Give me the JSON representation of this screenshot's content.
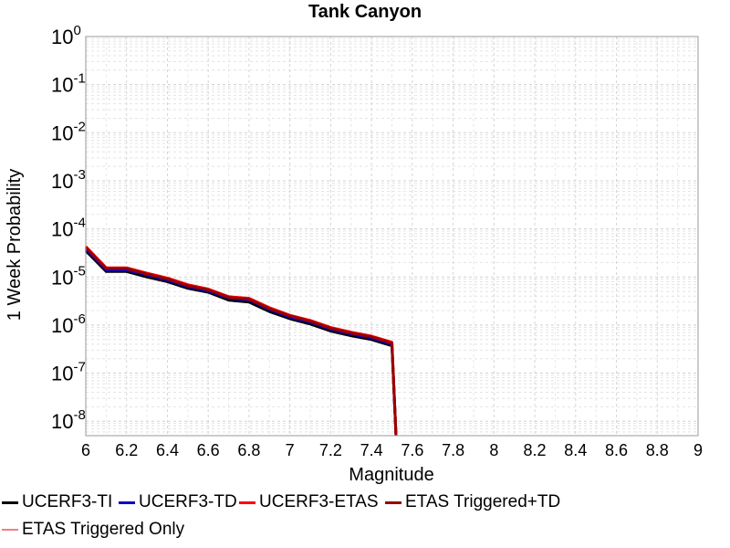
{
  "chart_data": {
    "type": "line",
    "title": "Tank Canyon",
    "xlabel": "Magnitude",
    "ylabel": "1 Week Probability",
    "xlim": [
      6,
      9
    ],
    "ylim_exp": [
      -8.3,
      0
    ],
    "yscale": "log",
    "grid": true,
    "x_ticks": [
      "6",
      "6.2",
      "6.4",
      "6.6",
      "6.8",
      "7",
      "7.2",
      "7.4",
      "7.6",
      "7.8",
      "8",
      "8.2",
      "8.4",
      "8.6",
      "8.8",
      "9"
    ],
    "y_ticks": [
      {
        "base": "10",
        "exp": "0"
      },
      {
        "base": "10",
        "exp": "-1"
      },
      {
        "base": "10",
        "exp": "-2"
      },
      {
        "base": "10",
        "exp": "-3"
      },
      {
        "base": "10",
        "exp": "-4"
      },
      {
        "base": "10",
        "exp": "-5"
      },
      {
        "base": "10",
        "exp": "-6"
      },
      {
        "base": "10",
        "exp": "-7"
      },
      {
        "base": "10",
        "exp": "-8"
      }
    ],
    "legend_position": "bottom",
    "series": [
      {
        "name": "UCERF3-TI",
        "color": "#000000",
        "x": [
          6.0,
          6.1,
          6.2,
          6.3,
          6.4,
          6.5,
          6.6,
          6.7,
          6.8,
          6.9,
          7.0,
          7.1,
          7.2,
          7.3,
          7.4,
          7.5,
          7.52
        ],
        "y": [
          3.5e-05,
          1.3e-05,
          1.3e-05,
          1e-05,
          8e-06,
          5.8e-06,
          4.8e-06,
          3.3e-06,
          3e-06,
          1.9e-06,
          1.35e-06,
          1.05e-06,
          7.5e-07,
          6e-07,
          5e-07,
          3.7e-07,
          5e-09
        ]
      },
      {
        "name": "UCERF3-TD",
        "color": "#0000cc",
        "x": [
          6.0,
          6.1,
          6.2,
          6.3,
          6.4,
          6.5,
          6.6,
          6.7,
          6.8,
          6.9,
          7.0,
          7.1,
          7.2,
          7.3,
          7.4,
          7.5,
          7.52
        ],
        "y": [
          3.8e-05,
          1.4e-05,
          1.4e-05,
          1.1e-05,
          8.6e-06,
          6.3e-06,
          5.1e-06,
          3.6e-06,
          3.3e-06,
          2.1e-06,
          1.45e-06,
          1.15e-06,
          8.2e-07,
          6.5e-07,
          5.4e-07,
          4e-07,
          5e-09
        ]
      },
      {
        "name": "UCERF3-ETAS",
        "color": "#ff0000",
        "x": [
          6.0,
          6.1,
          6.2,
          6.3,
          6.4,
          6.5,
          6.6,
          6.7,
          6.8,
          6.9,
          7.0,
          7.1,
          7.2,
          7.3,
          7.4,
          7.5,
          7.52
        ],
        "y": [
          4.3e-05,
          1.55e-05,
          1.55e-05,
          1.2e-05,
          9.5e-06,
          6.9e-06,
          5.6e-06,
          3.9e-06,
          3.6e-06,
          2.3e-06,
          1.6e-06,
          1.25e-06,
          8.9e-07,
          7.1e-07,
          5.9e-07,
          4.4e-07,
          5e-09
        ]
      },
      {
        "name": "ETAS Triggered+TD",
        "color": "#990000",
        "x": [
          6.0,
          6.1,
          6.2,
          6.3,
          6.4,
          6.5,
          6.6,
          6.7,
          6.8,
          6.9,
          7.0,
          7.1,
          7.2,
          7.3,
          7.4,
          7.5,
          7.52
        ],
        "y": [
          4.1e-05,
          1.5e-05,
          1.5e-05,
          1.15e-05,
          9.1e-06,
          6.6e-06,
          5.4e-06,
          3.75e-06,
          3.45e-06,
          2.2e-06,
          1.55e-06,
          1.2e-06,
          8.6e-07,
          6.8e-07,
          5.7e-07,
          4.2e-07,
          5e-09
        ]
      },
      {
        "name": "ETAS Triggered Only",
        "color": "#f08080",
        "x": [],
        "y": []
      }
    ]
  }
}
